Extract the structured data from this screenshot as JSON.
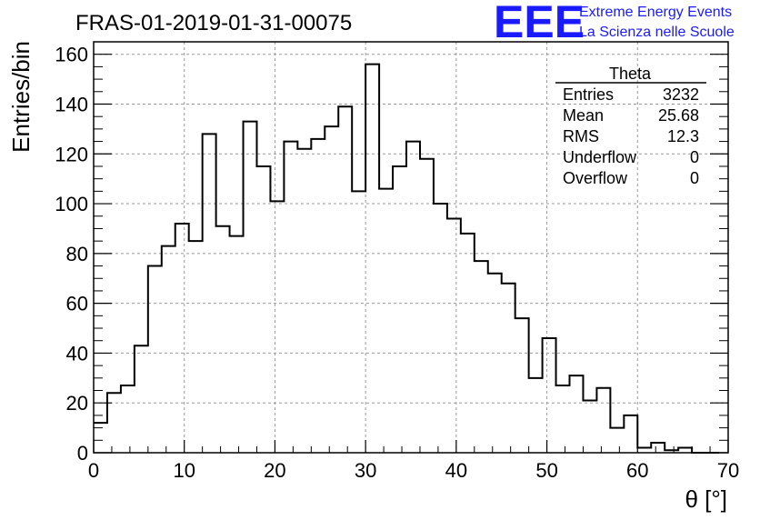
{
  "chart_data": {
    "type": "bar",
    "title": "FRAS-01-2019-01-31-00075",
    "xlabel": "θ [°]",
    "ylabel": "Entries/bin",
    "xlim": [
      0,
      70
    ],
    "ylim": [
      0,
      165
    ],
    "x_ticks": [
      "0",
      "10",
      "20",
      "30",
      "40",
      "50",
      "60",
      "70"
    ],
    "y_ticks": [
      "0",
      "20",
      "40",
      "60",
      "80",
      "100",
      "120",
      "140",
      "160"
    ],
    "grid": true,
    "bin_width": 1.5,
    "bin_start": 0,
    "values": [
      12,
      24,
      27,
      43,
      75,
      83,
      92,
      85,
      128,
      91,
      87,
      133,
      115,
      101,
      125,
      122,
      126,
      131,
      139,
      105,
      156,
      106,
      115,
      125,
      118,
      100,
      94,
      88,
      77,
      72,
      68,
      54,
      30,
      46,
      27,
      31,
      21,
      26,
      10,
      15,
      2,
      4,
      1,
      2,
      0,
      0
    ]
  },
  "logo": {
    "text": "EEE",
    "line1": "Extreme Energy Events",
    "line2": "La Scienza nelle Scuole"
  },
  "stats": {
    "title": "Theta",
    "rows": [
      {
        "label": "Entries",
        "value": "3232"
      },
      {
        "label": "Mean",
        "value": "25.68"
      },
      {
        "label": "RMS",
        "value": "12.3"
      },
      {
        "label": "Underflow",
        "value": "0"
      },
      {
        "label": "Overflow",
        "value": "0"
      }
    ]
  }
}
